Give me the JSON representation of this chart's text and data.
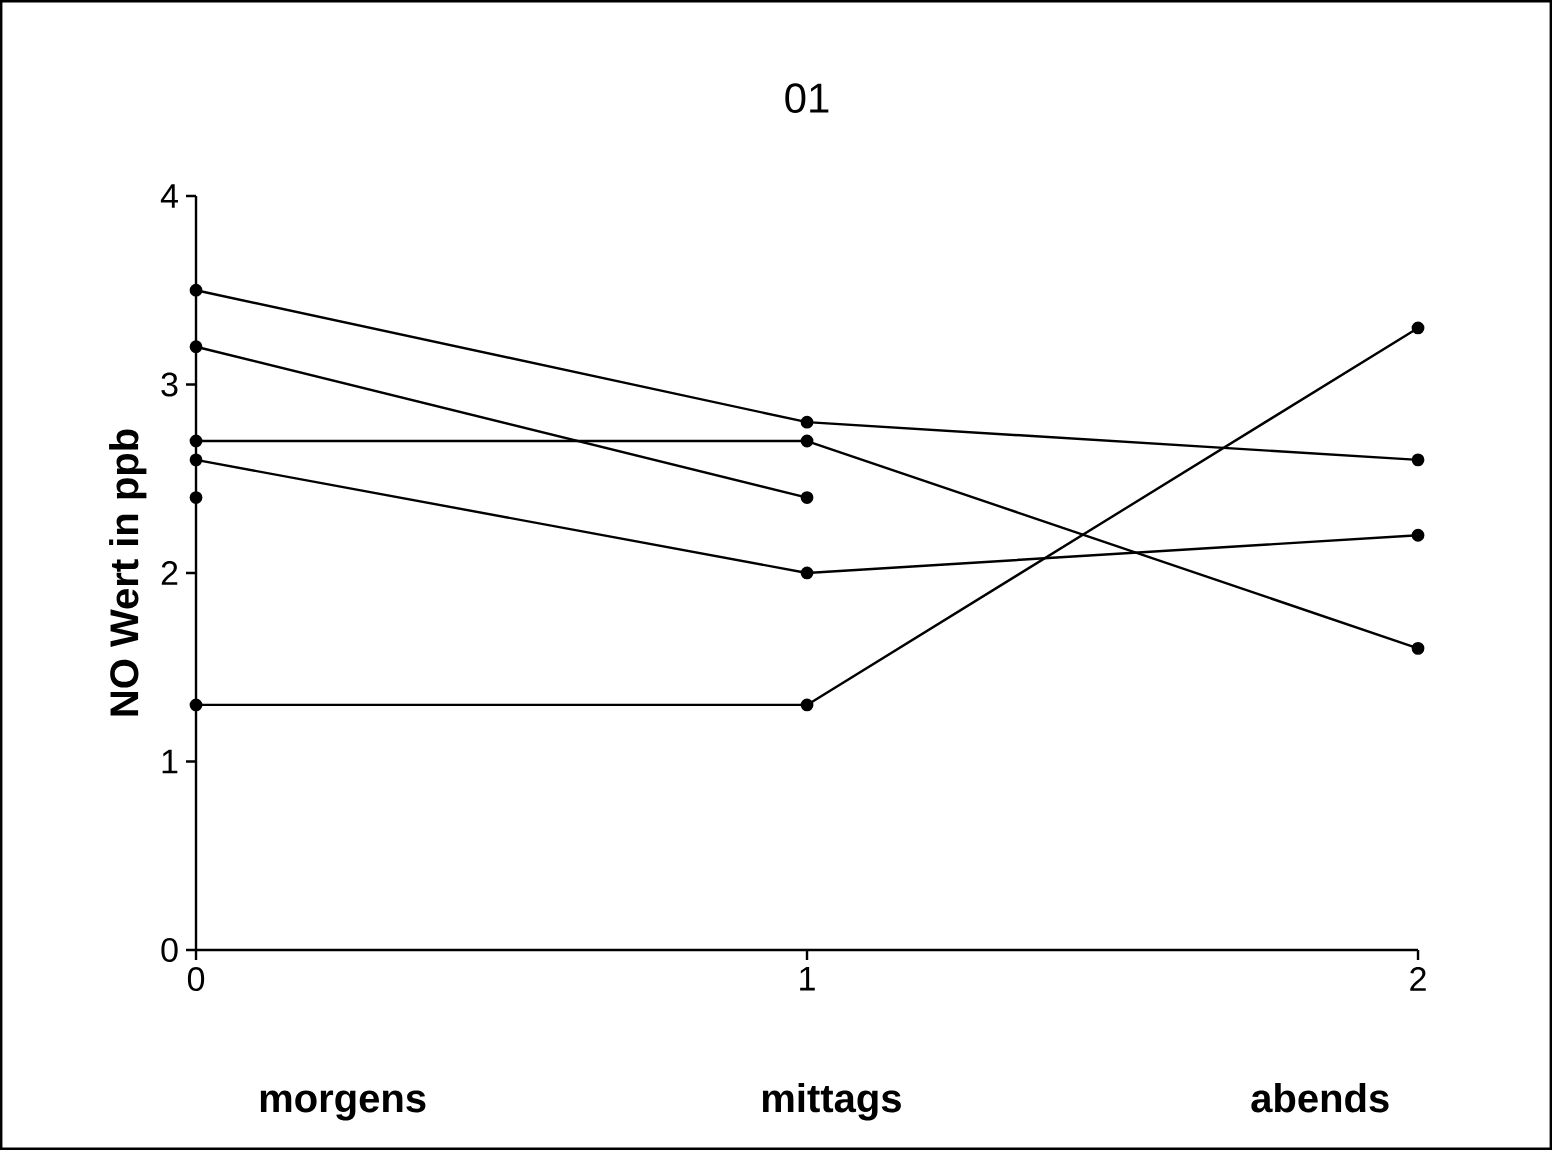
{
  "chart_data": {
    "type": "line",
    "title": "01",
    "ylabel": "NO Wert in ppb",
    "x": [
      0,
      1,
      2
    ],
    "series": [
      {
        "color": "#000000",
        "values": [
          3.5,
          2.8,
          2.6
        ]
      },
      {
        "color": "#000000",
        "values": [
          3.2,
          2.4,
          null
        ]
      },
      {
        "color": "#000000",
        "values": [
          2.7,
          2.7,
          1.6
        ]
      },
      {
        "color": "#000000",
        "values": [
          2.6,
          2.0,
          2.2
        ]
      },
      {
        "color": "#000000",
        "values": [
          2.4,
          null,
          null
        ]
      },
      {
        "color": "#000000",
        "values": [
          1.3,
          1.3,
          3.3
        ]
      }
    ],
    "xlim": [
      0,
      2
    ],
    "ylim": [
      0,
      4
    ],
    "xticks": [
      0,
      1,
      2
    ],
    "yticks": [
      0,
      1,
      2,
      3,
      4
    ],
    "marker": "circle",
    "line_style": "solid",
    "grid": false,
    "annotations": [
      "morgens",
      "mittags",
      "abends"
    ]
  }
}
